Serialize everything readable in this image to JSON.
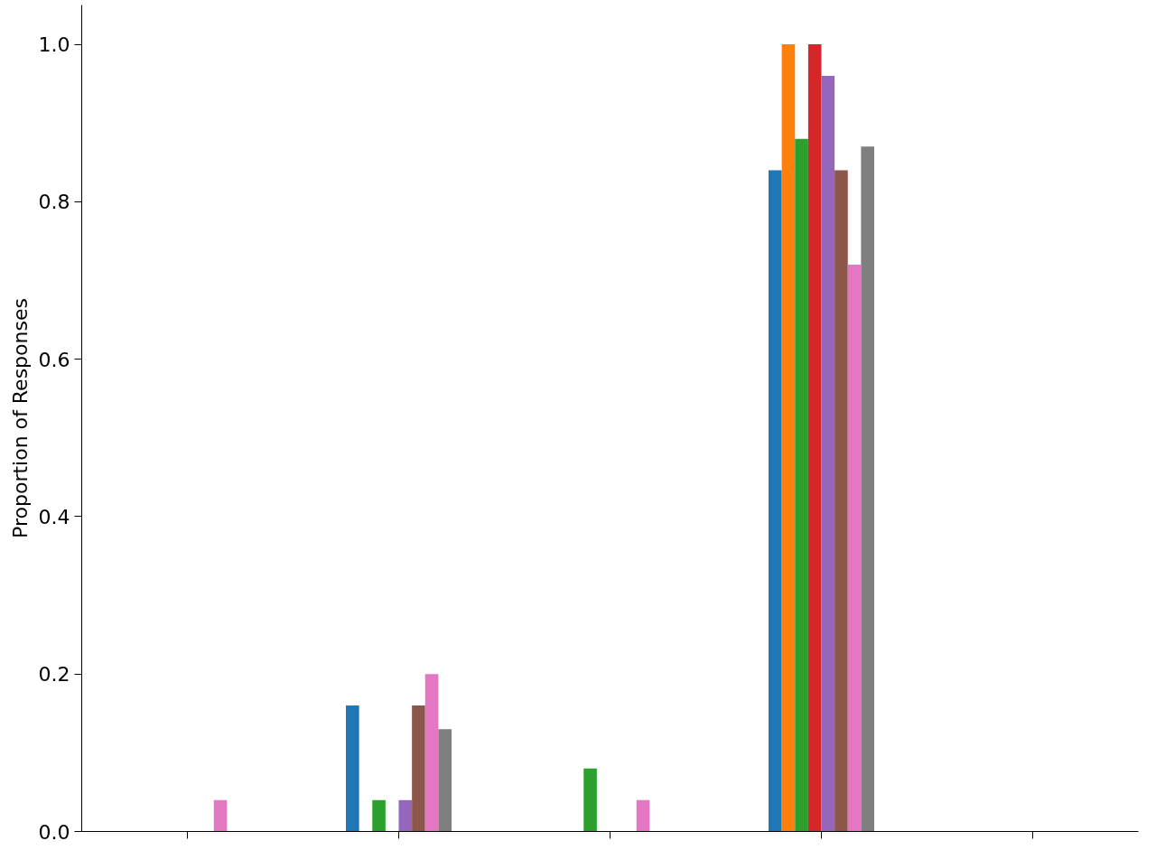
{
  "chart_data": {
    "type": "bar",
    "ylabel": "Proportion of Responses",
    "categories": [
      null,
      null,
      null,
      null,
      null
    ],
    "series": [
      {
        "color": "#1f77b4",
        "values": [
          0,
          0.16,
          0,
          0.84,
          0
        ]
      },
      {
        "color": "#ff7f0e",
        "values": [
          0,
          0,
          0,
          1.0,
          0
        ]
      },
      {
        "color": "#2ca02c",
        "values": [
          0,
          0.04,
          0.08,
          0.88,
          0
        ]
      },
      {
        "color": "#d62728",
        "values": [
          0,
          0,
          0,
          1.0,
          0
        ]
      },
      {
        "color": "#9467bd",
        "values": [
          0,
          0.04,
          0,
          0.96,
          0
        ]
      },
      {
        "color": "#8c564b",
        "values": [
          0,
          0.16,
          0,
          0.84,
          0
        ]
      },
      {
        "color": "#e377c2",
        "values": [
          0.04,
          0.2,
          0.04,
          0.72,
          0
        ]
      },
      {
        "color": "#7f7f7f",
        "values": [
          0,
          0.13,
          0,
          0.87,
          0
        ]
      }
    ],
    "ylim": [
      0,
      1.05
    ],
    "yticks": [
      {
        "value": 0,
        "label": "0.0"
      },
      {
        "value": 0.2,
        "label": "0.2"
      },
      {
        "value": 0.4,
        "label": "0.4"
      },
      {
        "value": 0.6,
        "label": "0.6"
      },
      {
        "value": 0.8,
        "label": "0.8"
      },
      {
        "value": 1.0,
        "label": "1.0"
      }
    ],
    "grid": false
  }
}
